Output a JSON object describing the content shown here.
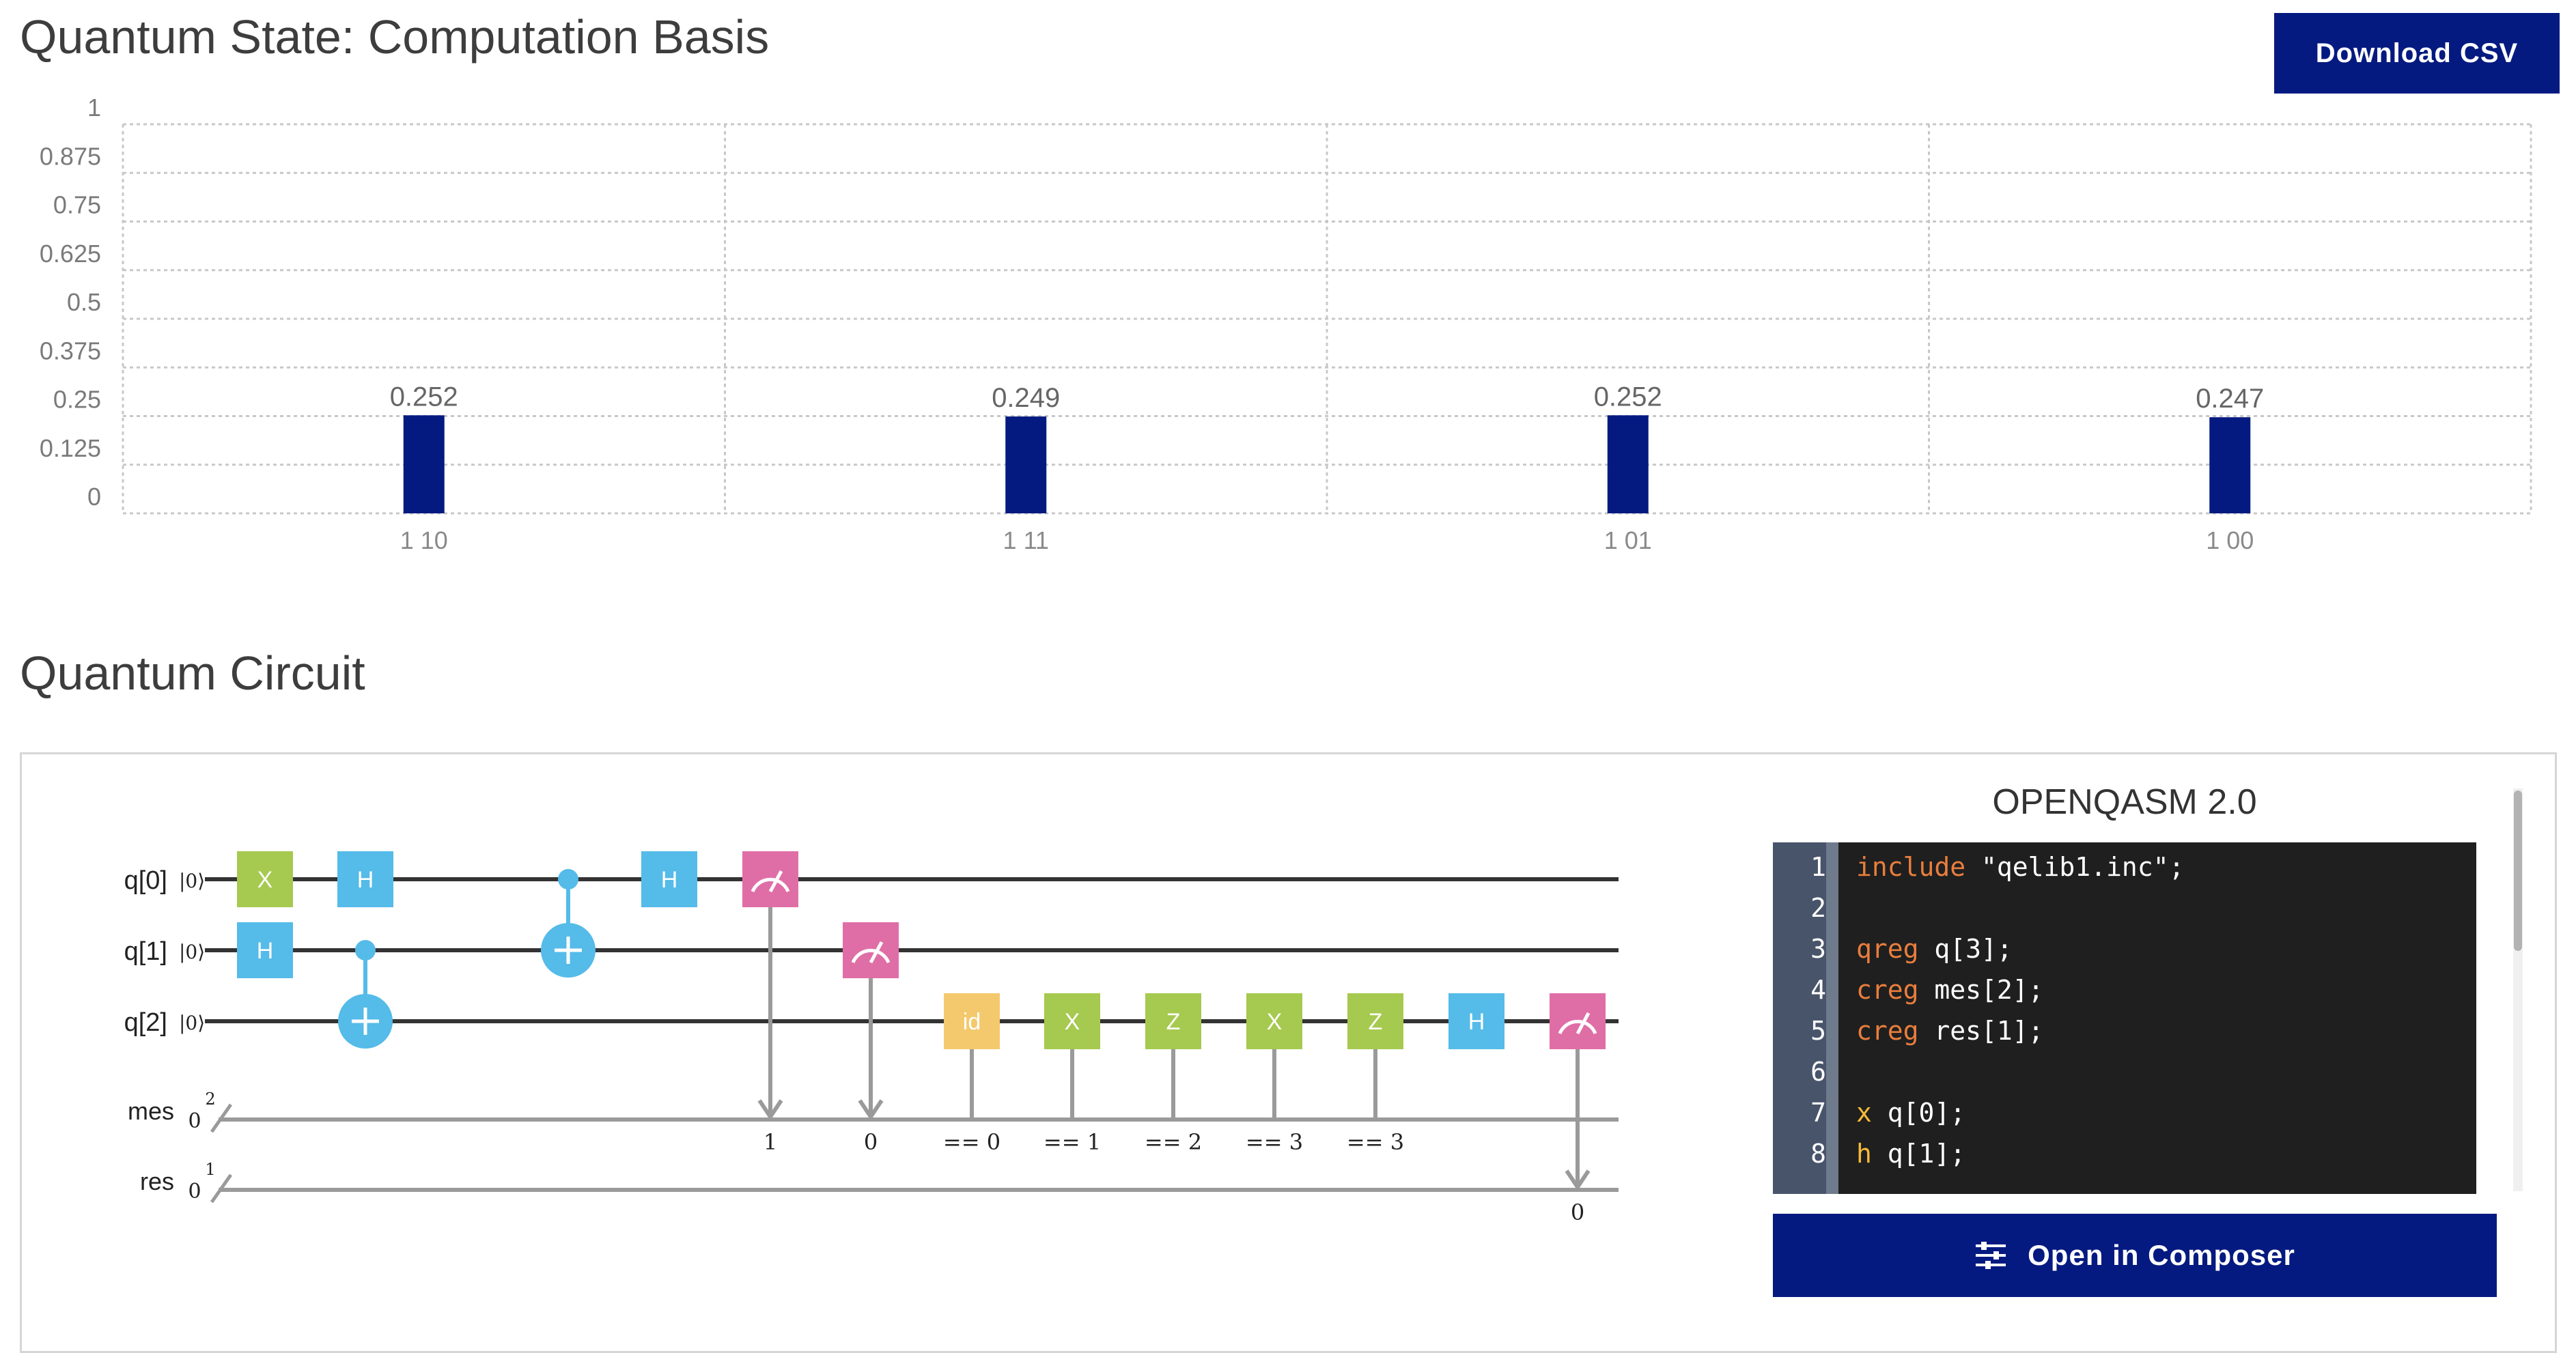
{
  "header": {
    "title": "Quantum State: Computation Basis",
    "download_label": "Download CSV"
  },
  "chart_data": {
    "type": "bar",
    "title": "",
    "categories": [
      "1 10",
      "1 11",
      "1 01",
      "1 00"
    ],
    "values": [
      0.252,
      0.249,
      0.252,
      0.247
    ],
    "value_labels": [
      "0.252",
      "0.249",
      "0.252",
      "0.247"
    ],
    "ylim": [
      0,
      1
    ],
    "yticks": [
      "0",
      "0.125",
      "0.25",
      "0.375",
      "0.5",
      "0.625",
      "0.75",
      "0.875",
      "1"
    ],
    "grid": true,
    "bar_color": "#051a80"
  },
  "circuit_section": {
    "title": "Quantum Circuit",
    "qubits": [
      "q[0]",
      "q[1]",
      "q[2]"
    ],
    "qubit_init": "|0⟩",
    "classical_registers": [
      {
        "name": "mes",
        "init": "0",
        "size": "2"
      },
      {
        "name": "res",
        "init": "0",
        "size": "1"
      }
    ],
    "gates": {
      "x": "X",
      "h": "H",
      "z": "Z",
      "id": "id"
    },
    "measure_labels": [
      "1",
      "0",
      "0"
    ],
    "condition_labels": [
      "== 0",
      "== 1",
      "== 2",
      "== 3",
      "== 3"
    ],
    "colors": {
      "x": "#a6c94f",
      "z": "#a6c94f",
      "h": "#55bbe8",
      "cx": "#55bbe8",
      "id": "#f4c96d",
      "measure": "#e06ea6",
      "wire": "#333333",
      "classical": "#9a9a9a"
    }
  },
  "editor": {
    "title": "OPENQASM 2.0",
    "lines": [
      {
        "n": "1",
        "kw": "include",
        "rest": " \"qelib1.inc\";"
      },
      {
        "n": "2",
        "kw": "",
        "rest": ""
      },
      {
        "n": "3",
        "kw": "qreg",
        "rest": " q[3];"
      },
      {
        "n": "4",
        "kw": "creg",
        "rest": " mes[2];"
      },
      {
        "n": "5",
        "kw": "creg",
        "rest": " res[1];"
      },
      {
        "n": "6",
        "kw": "",
        "rest": ""
      },
      {
        "n": "7",
        "kw": "x",
        "rest": " q[0];"
      },
      {
        "n": "8",
        "kw": "h",
        "rest": " q[1];"
      }
    ]
  },
  "composer_label": "Open in Composer"
}
